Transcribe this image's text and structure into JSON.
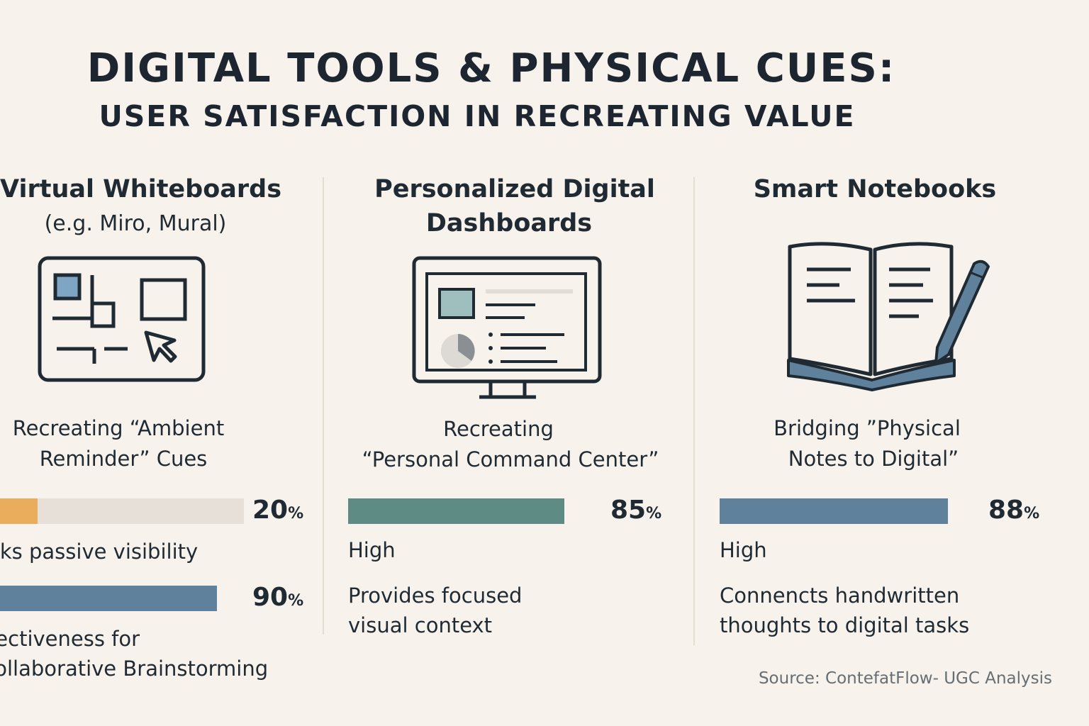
{
  "title": "DIGITAL TOOLS & PHYSICAL CUES:",
  "subtitle": "USER SATISFACTION IN RECREATING VALUE",
  "source": "Source: ContefatFlow- UGC Analysis",
  "colors": {
    "background": "#f7f3ec",
    "orange": "#e9ad5b",
    "track": "#e6e0d9",
    "teal": "#5e8c84",
    "blue": "#5f819c",
    "icon_stroke": "#1f2a33"
  },
  "columns": [
    {
      "title": "Virtual Whiteboards",
      "subtitle": "(e.g. Miro, Mural)",
      "icon": "whiteboard-icon",
      "cue_lines": [
        "Recreating “Ambient",
        "Reminder” Cues"
      ]
    },
    {
      "title_lines": [
        "Personalized Digital",
        "Dashboards"
      ],
      "icon": "dashboard-monitor-icon",
      "cue_lines": [
        "Recreating",
        "“Personal Command Center”"
      ]
    },
    {
      "title": "Smart Notebooks",
      "icon": "notebook-pen-icon",
      "cue_lines": [
        "Bridging ”Physical",
        "Notes to Digital”"
      ]
    }
  ],
  "chart_data": {
    "type": "bar",
    "orientation": "horizontal",
    "unit": "%",
    "xlim": [
      0,
      100
    ],
    "bars": [
      {
        "group": "Virtual Whiteboards",
        "value": 20,
        "value_label": "20",
        "note_lines": [
          "Lacks passive visibility"
        ],
        "color": "#e9ad5b"
      },
      {
        "group": "Virtual Whiteboards",
        "value": 90,
        "value_label": "90",
        "note_lines": [
          "Effectiveness for",
          "Collaborative Brainstorming"
        ],
        "color": "#5f819c"
      },
      {
        "group": "Personalized Digital Dashboards",
        "value": 85,
        "value_label": "85",
        "level": "High",
        "note_lines": [
          "Provides focused",
          "visual context"
        ],
        "color": "#5e8c84"
      },
      {
        "group": "Smart Notebooks",
        "value": 88,
        "value_label": "88",
        "level": "High",
        "note_lines": [
          "Connencts handwritten",
          "thoughts to digital tasks"
        ],
        "color": "#5f819c"
      }
    ]
  }
}
